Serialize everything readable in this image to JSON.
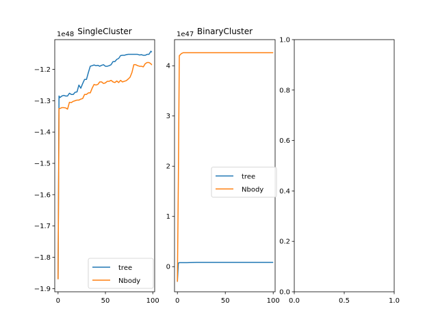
{
  "figure": {
    "colors": {
      "tree": "#1f77b4",
      "Nbody": "#ff7f0e",
      "axis": "#000000",
      "legend_border": "#cccccc"
    }
  },
  "chart_data": [
    {
      "type": "line",
      "title": "SingleCluster",
      "offset_label": "1e48",
      "xlim": [
        -3.5,
        102
      ],
      "ylim": [
        -1.91,
        -1.105
      ],
      "xticks": [
        0,
        50,
        100
      ],
      "xtick_labels": [
        "0",
        "50",
        "100"
      ],
      "yticks": [
        -1.9,
        -1.8,
        -1.7,
        -1.6,
        -1.5,
        -1.4,
        -1.3,
        -1.2
      ],
      "ytick_labels": [
        "−1.9",
        "−1.8",
        "−1.7",
        "−1.6",
        "−1.5",
        "−1.4",
        "−1.3",
        "−1.2"
      ],
      "legend": {
        "position": "lower right",
        "entries": [
          "tree",
          "Nbody"
        ]
      },
      "series": [
        {
          "name": "tree",
          "color": "#1f77b4",
          "x": [
            0,
            1,
            2,
            4,
            6,
            8,
            10,
            12,
            14,
            16,
            18,
            20,
            22,
            24,
            26,
            28,
            30,
            32,
            34,
            36,
            38,
            40,
            42,
            44,
            46,
            48,
            50,
            52,
            54,
            56,
            58,
            60,
            62,
            64,
            66,
            68,
            70,
            72,
            74,
            76,
            78,
            80,
            82,
            84,
            86,
            88,
            90,
            92,
            94,
            96,
            98,
            99
          ],
          "y": [
            -1.87,
            -1.285,
            -1.29,
            -1.285,
            -1.283,
            -1.285,
            -1.285,
            -1.276,
            -1.28,
            -1.28,
            -1.273,
            -1.272,
            -1.25,
            -1.26,
            -1.245,
            -1.232,
            -1.232,
            -1.21,
            -1.19,
            -1.188,
            -1.186,
            -1.188,
            -1.187,
            -1.19,
            -1.187,
            -1.185,
            -1.19,
            -1.19,
            -1.188,
            -1.185,
            -1.175,
            -1.175,
            -1.168,
            -1.165,
            -1.156,
            -1.155,
            -1.155,
            -1.153,
            -1.152,
            -1.152,
            -1.152,
            -1.152,
            -1.152,
            -1.152,
            -1.154,
            -1.153,
            -1.155,
            -1.155,
            -1.152,
            -1.152,
            -1.142,
            -1.145
          ]
        },
        {
          "name": "Nbody",
          "color": "#ff7f0e",
          "x": [
            0,
            1,
            2,
            4,
            6,
            8,
            10,
            12,
            14,
            16,
            18,
            20,
            22,
            24,
            26,
            28,
            30,
            32,
            34,
            36,
            38,
            40,
            42,
            44,
            46,
            48,
            50,
            52,
            54,
            56,
            58,
            60,
            62,
            64,
            66,
            68,
            70,
            72,
            74,
            76,
            78,
            80,
            82,
            84,
            86,
            88,
            90,
            92,
            94,
            96,
            98,
            99
          ],
          "y": [
            -1.87,
            -1.325,
            -1.325,
            -1.322,
            -1.322,
            -1.323,
            -1.327,
            -1.305,
            -1.306,
            -1.302,
            -1.3,
            -1.298,
            -1.298,
            -1.295,
            -1.293,
            -1.28,
            -1.28,
            -1.275,
            -1.275,
            -1.26,
            -1.248,
            -1.25,
            -1.248,
            -1.24,
            -1.24,
            -1.245,
            -1.243,
            -1.238,
            -1.238,
            -1.235,
            -1.24,
            -1.242,
            -1.237,
            -1.242,
            -1.235,
            -1.24,
            -1.238,
            -1.236,
            -1.231,
            -1.225,
            -1.21,
            -1.185,
            -1.185,
            -1.188,
            -1.19,
            -1.19,
            -1.192,
            -1.182,
            -1.178,
            -1.178,
            -1.182,
            -1.186
          ]
        }
      ]
    },
    {
      "type": "line",
      "title": "BinaryCluster",
      "offset_label": "1e47",
      "xlim": [
        -3,
        102
      ],
      "ylim": [
        -0.5,
        4.52
      ],
      "xticks": [
        0,
        50,
        100
      ],
      "xtick_labels": [
        "0",
        "50",
        "100"
      ],
      "yticks": [
        0,
        1,
        2,
        3,
        4
      ],
      "ytick_labels": [
        "0",
        "1",
        "2",
        "3",
        "4"
      ],
      "legend": {
        "position": "center right",
        "entries": [
          "tree",
          "Nbody"
        ]
      },
      "series": [
        {
          "name": "tree",
          "color": "#1f77b4",
          "x": [
            0,
            1,
            2,
            5,
            10,
            20,
            40,
            60,
            80,
            100
          ],
          "y": [
            -0.3,
            0.07,
            0.08,
            0.08,
            0.08,
            0.085,
            0.085,
            0.085,
            0.085,
            0.085
          ]
        },
        {
          "name": "Nbody",
          "color": "#ff7f0e",
          "x": [
            0,
            1,
            2,
            4,
            6,
            10,
            20,
            40,
            60,
            80,
            100
          ],
          "y": [
            -0.3,
            1.7,
            4.2,
            4.24,
            4.26,
            4.26,
            4.26,
            4.26,
            4.26,
            4.26,
            4.26
          ]
        }
      ]
    },
    {
      "type": "line",
      "title": "",
      "xlim": [
        0,
        1
      ],
      "ylim": [
        0,
        1
      ],
      "xticks": [
        0,
        0.5,
        1
      ],
      "xtick_labels": [
        "0.0",
        "0.5",
        "1.0"
      ],
      "yticks": [
        0,
        0.2,
        0.4,
        0.6,
        0.8,
        1.0
      ],
      "ytick_labels": [
        "0.0",
        "0.2",
        "0.4",
        "0.6",
        "0.8",
        "1.0"
      ],
      "series": []
    }
  ]
}
